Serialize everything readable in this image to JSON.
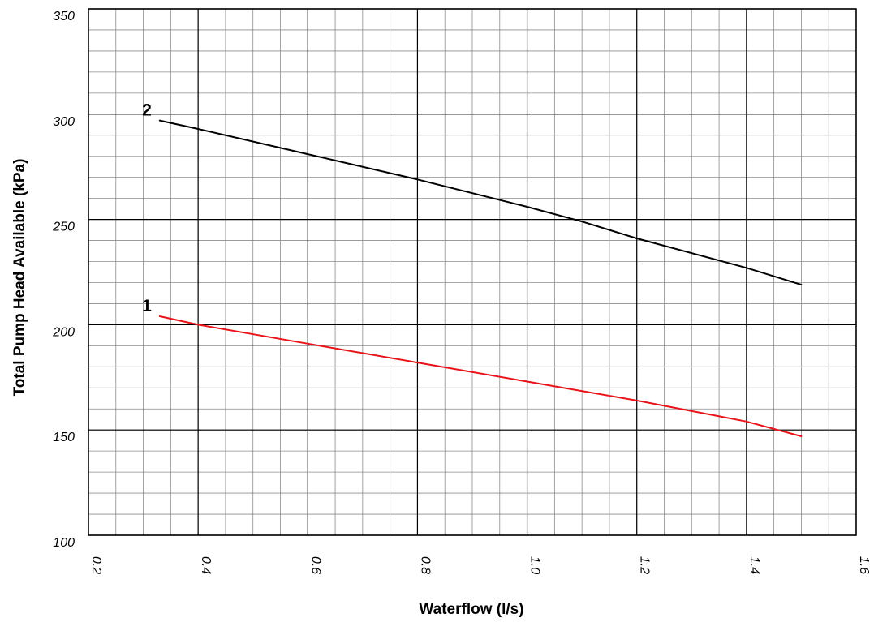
{
  "chart_data": {
    "type": "line",
    "xlabel": "Waterflow (l/s)",
    "ylabel": "Total Pump Head Available (kPa)",
    "xlim": [
      0.2,
      1.6
    ],
    "ylim": [
      100,
      350
    ],
    "x_ticks": [
      "0.2",
      "0.4",
      "0.6",
      "0.8",
      "1.0",
      "1.2",
      "1.4",
      "1.6"
    ],
    "x_tick_values": [
      0.2,
      0.4,
      0.6,
      0.8,
      1.0,
      1.2,
      1.4,
      1.6
    ],
    "y_ticks": [
      "100",
      "150",
      "200",
      "250",
      "300",
      "350"
    ],
    "y_tick_values": [
      100,
      150,
      200,
      250,
      300,
      350
    ],
    "grid": true,
    "minor_grid": {
      "x_step": 0.05,
      "y_step": 10
    },
    "series": [
      {
        "name": "1",
        "color": "#e8141a",
        "x": [
          0.33,
          0.4,
          0.6,
          0.8,
          1.0,
          1.2,
          1.4,
          1.5
        ],
        "y": [
          204,
          200,
          191,
          182,
          173,
          164,
          154,
          147
        ]
      },
      {
        "name": "2",
        "color": "#000000",
        "x": [
          0.33,
          0.4,
          0.6,
          0.8,
          1.0,
          1.1,
          1.2,
          1.4,
          1.5
        ],
        "y": [
          297,
          293,
          281,
          269,
          256,
          249,
          241,
          227,
          219
        ]
      }
    ]
  }
}
